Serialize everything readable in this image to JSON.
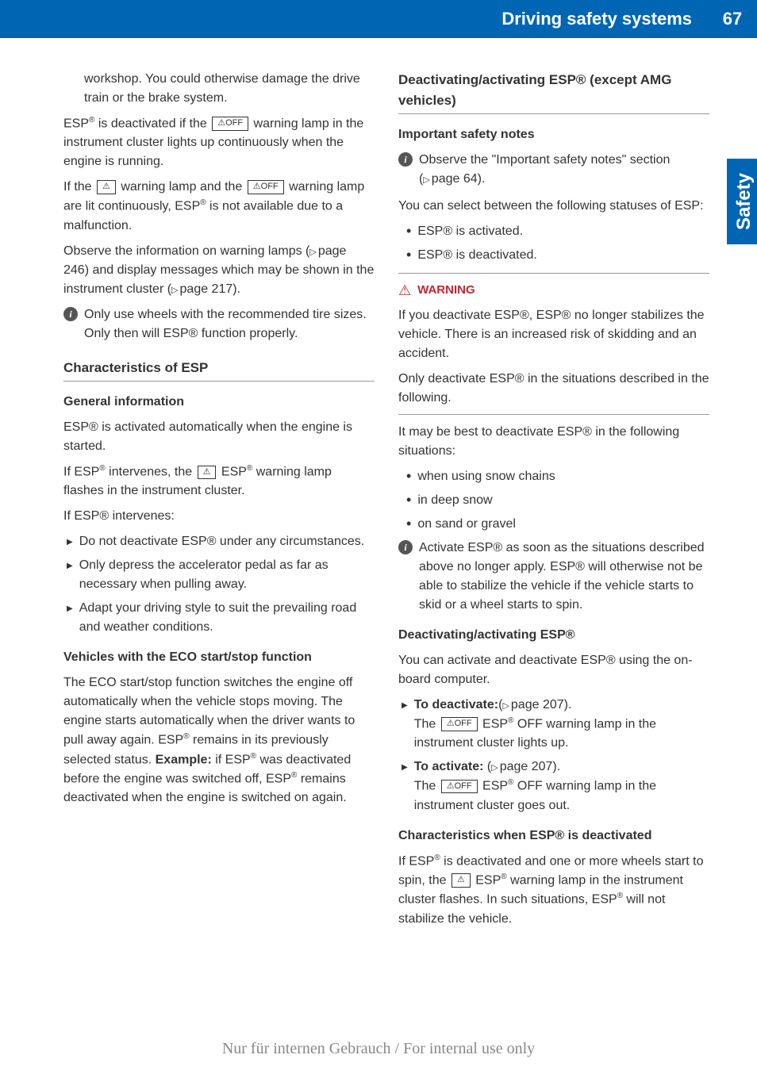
{
  "header": {
    "title": "Driving safety systems",
    "pageNumber": "67"
  },
  "sideTab": "Safety",
  "leftColumn": {
    "intro": {
      "p1_indent": "workshop. You could otherwise damage the drive train or the brake system.",
      "p2_part1": "ESP",
      "p2_part2": " is deactivated if the ",
      "p2_lamp1": "⚠OFF",
      "p2_part3": " warning lamp in the instrument cluster lights up continuously when the engine is running.",
      "p3_part1": "If the ",
      "p3_lamp1": "⚠",
      "p3_part2": " warning lamp and the ",
      "p3_lamp2": "⚠OFF",
      "p3_part3": " warning lamp are lit continuously, ESP",
      "p3_part4": " is not available due to a malfunction.",
      "p4_part1": "Observe the information on warning lamps (",
      "p4_ref1": "page 246",
      "p4_part2": ") and display messages which may be shown in the instrument cluster (",
      "p4_ref2": "page 217",
      "p4_part3": ")."
    },
    "infoNote1": "Only use wheels with the recommended tire sizes. Only then will ESP® function properly.",
    "characteristics": {
      "heading": "Characteristics of ESP",
      "sub1": "General information",
      "p1": "ESP® is activated automatically when the engine is started.",
      "p2_part1": "If ESP",
      "p2_part2": " intervenes, the ",
      "p2_lamp": "⚠",
      "p2_part3": " ESP",
      "p2_part4": " warning lamp flashes in the instrument cluster.",
      "p3": "If ESP® intervenes:",
      "bullets": [
        "Do not deactivate ESP® under any circumstances.",
        "Only depress the accelerator pedal as far as necessary when pulling away.",
        "Adapt your driving style to suit the prevailing road and weather conditions."
      ],
      "sub2": "Vehicles with the ECO start/stop function",
      "p4_part1": "The ECO start/stop function switches the engine off automatically when the vehicle stops moving. The engine starts automatically when the driver wants to pull away again. ESP",
      "p4_part2": " remains in its previously selected status. ",
      "p4_ex": "Example:",
      "p4_part3": " if ESP",
      "p4_part4": " was deactivated before the engine was switched off, ESP",
      "p4_part5": " remains deactivated when the engine is switched on again."
    }
  },
  "rightColumn": {
    "deactivating": {
      "heading": "Deactivating/activating ESP® (except AMG vehicles)",
      "sub1": "Important safety notes",
      "info1_part1": "Observe the \"Important safety notes\" section (",
      "info1_ref": "page 64",
      "info1_part2": ").",
      "p1": "You can select between the following statuses of ESP:",
      "bullets1": [
        "ESP® is activated.",
        "ESP® is deactivated."
      ],
      "warning": {
        "label": "WARNING",
        "p1": "If you deactivate ESP®, ESP® no longer stabilizes the vehicle. There is an increased risk of skidding and an accident.",
        "p2": "Only deactivate ESP® in the situations described in the following."
      },
      "p2": "It may be best to deactivate ESP® in the following situations:",
      "bullets2": [
        "when using snow chains",
        "in deep snow",
        "on sand or gravel"
      ],
      "info2": "Activate ESP® as soon as the situations described above no longer apply. ESP® will otherwise not be able to stabilize the vehicle if the vehicle starts to skid or a wheel starts to spin.",
      "sub2": "Deactivating/activating ESP®",
      "p3": "You can activate and deactivate ESP® using the on-board computer.",
      "action1_label": "To deactivate:",
      "action1_ref": "page 207",
      "action1_part1": "The ",
      "action1_lamp": "⚠OFF",
      "action1_part2": " ESP",
      "action1_part3": " OFF warning lamp in the instrument cluster lights up.",
      "action2_label": "To activate:",
      "action2_ref": "page 207",
      "action2_part1": "The ",
      "action2_lamp": "⚠OFF",
      "action2_part2": " ESP",
      "action2_part3": " OFF warning lamp in the instrument cluster goes out.",
      "sub3": "Characteristics when ESP® is deactivated",
      "p4_part1": "If ESP",
      "p4_part2": " is deactivated and one or more wheels start to spin, the ",
      "p4_lamp": "⚠",
      "p4_part3": " ESP",
      "p4_part4": " warning lamp in the instrument cluster flashes. In such situations, ESP",
      "p4_part5": " will not stabilize the vehicle."
    }
  },
  "footer": "Nur für internen Gebrauch / For internal use only",
  "colors": {
    "headerBg": "#0066b3",
    "warningRed": "#c1272d",
    "textGray": "#333",
    "footerGray": "#888"
  }
}
